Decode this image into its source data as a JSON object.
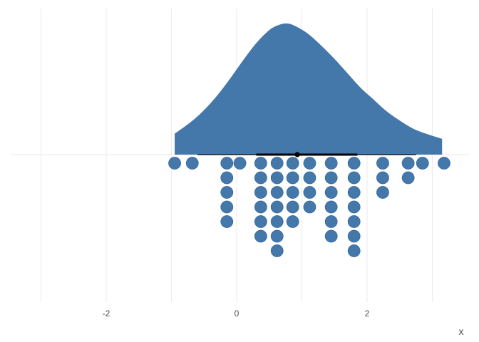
{
  "chart_data": {
    "type": "dotplot-with-density",
    "title": "",
    "xlabel": "x",
    "ylabel": "",
    "xlim": [
      -3.2,
      3.5
    ],
    "x_ticks": [
      -2,
      0,
      2
    ],
    "x_tick_labels": [
      "-2",
      "0",
      "2"
    ],
    "grid": true,
    "fill_color": "#4477aa",
    "interval_color": "#000000",
    "density": {
      "x_range": [
        -0.95,
        3.15
      ],
      "mode_x": 0.78,
      "x": [
        -0.95,
        -0.7,
        -0.5,
        -0.3,
        -0.1,
        0.1,
        0.3,
        0.5,
        0.65,
        0.78,
        0.9,
        1.1,
        1.3,
        1.5,
        1.7,
        1.9,
        2.1,
        2.3,
        2.5,
        2.7,
        2.9,
        3.15
      ],
      "y": [
        0.16,
        0.25,
        0.34,
        0.45,
        0.58,
        0.72,
        0.85,
        0.95,
        0.99,
        1.0,
        0.98,
        0.92,
        0.83,
        0.73,
        0.62,
        0.51,
        0.42,
        0.33,
        0.26,
        0.2,
        0.16,
        0.12
      ]
    },
    "interval": {
      "point": 0.93,
      "inner": [
        0.3,
        1.85
      ],
      "outer": [
        -0.6,
        2.75
      ]
    },
    "dots": [
      {
        "x": -0.95,
        "count": 1
      },
      {
        "x": -0.68,
        "count": 1
      },
      {
        "x": -0.15,
        "count": 5
      },
      {
        "x": 0.05,
        "count": 1
      },
      {
        "x": 0.37,
        "count": 6
      },
      {
        "x": 0.62,
        "count": 7
      },
      {
        "x": 0.86,
        "count": 5
      },
      {
        "x": 1.12,
        "count": 4
      },
      {
        "x": 1.45,
        "count": 6
      },
      {
        "x": 1.8,
        "count": 7
      },
      {
        "x": 2.24,
        "count": 3
      },
      {
        "x": 2.63,
        "count": 2
      },
      {
        "x": 2.85,
        "count": 1
      },
      {
        "x": 3.18,
        "count": 1
      }
    ]
  }
}
